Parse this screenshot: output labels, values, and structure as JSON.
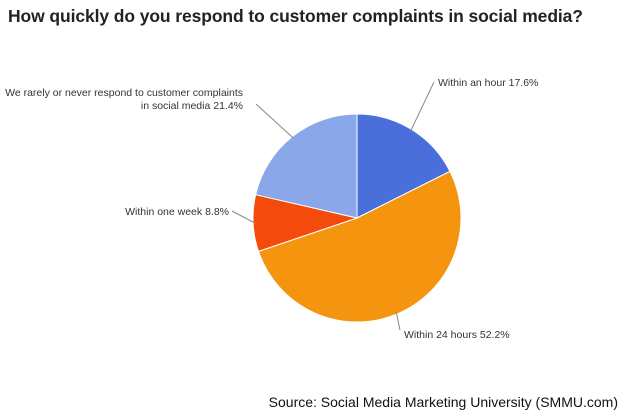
{
  "chart_data": {
    "type": "pie",
    "title": "How quickly do you respond to customer complaints in social media?",
    "start_angle_deg": 0,
    "direction": "clockwise",
    "slices": [
      {
        "label": "Within an hour",
        "value": 17.6,
        "display": "Within an hour 17.6%",
        "color": "#4a6fdb"
      },
      {
        "label": "Within 24 hours",
        "value": 52.2,
        "display": "Within 24 hours 52.2%",
        "color": "#f5950f"
      },
      {
        "label": "Within one week",
        "value": 8.8,
        "display": "Within one week 8.8%",
        "color": "#f44b0c"
      },
      {
        "label": "We rarely or never respond to customer complaints in social media",
        "value": 21.4,
        "display_lines": [
          "We rarely or never respond to customer complaints",
          "in social media 21.4%"
        ],
        "color": "#8aa7ea"
      }
    ]
  },
  "source": "Source: Social Media Marketing University (SMMU.com)"
}
